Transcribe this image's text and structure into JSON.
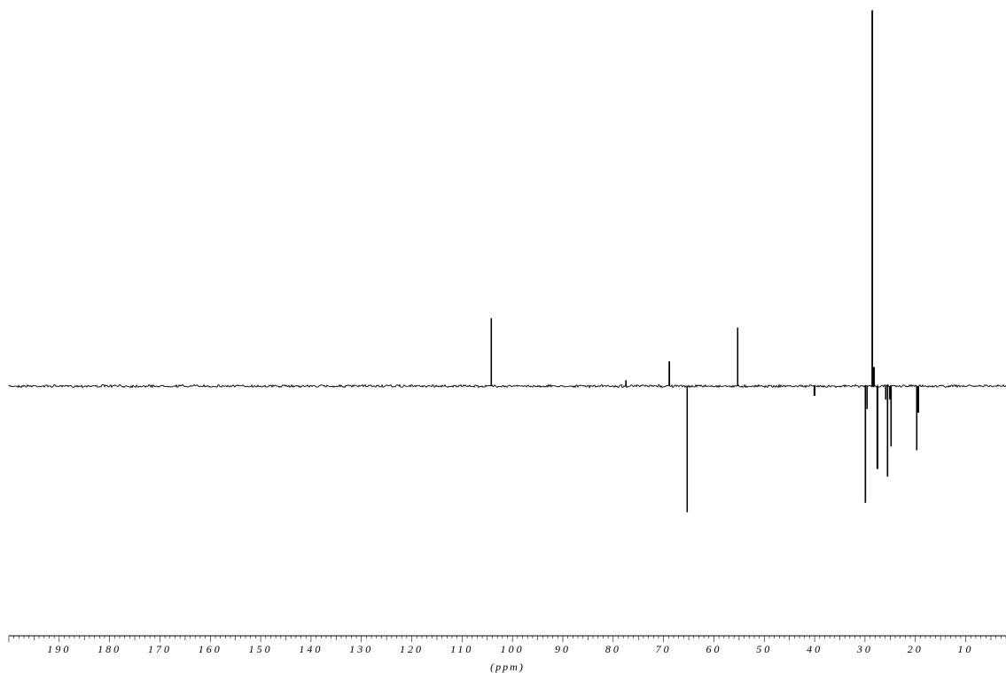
{
  "chart_data": {
    "type": "line",
    "title": "",
    "xlabel": "(ppm)",
    "ylabel": "",
    "x_axis_reversed": true,
    "xlim": [
      200,
      2
    ],
    "ylim": [
      -0.34,
      1.0
    ],
    "grid": false,
    "legend": "none",
    "line_color": "#000000",
    "x_ticks": [
      {
        "value": 190,
        "label": "190"
      },
      {
        "value": 180,
        "label": "180"
      },
      {
        "value": 170,
        "label": "170"
      },
      {
        "value": 160,
        "label": "160"
      },
      {
        "value": 150,
        "label": "150"
      },
      {
        "value": 140,
        "label": "140"
      },
      {
        "value": 130,
        "label": "130"
      },
      {
        "value": 120,
        "label": "120"
      },
      {
        "value": 110,
        "label": "110"
      },
      {
        "value": 100,
        "label": "100"
      },
      {
        "value": 90,
        "label": "90"
      },
      {
        "value": 80,
        "label": "80"
      },
      {
        "value": 70,
        "label": "70"
      },
      {
        "value": 60,
        "label": "60"
      },
      {
        "value": 50,
        "label": "50"
      },
      {
        "value": 40,
        "label": "40"
      },
      {
        "value": 30,
        "label": "30"
      },
      {
        "value": 20,
        "label": "20"
      },
      {
        "value": 10,
        "label": "10"
      }
    ],
    "series": [
      {
        "peaks": [
          {
            "ppm": 104.2,
            "intensity": 0.18
          },
          {
            "ppm": 77.5,
            "intensity": 0.015
          },
          {
            "ppm": 68.9,
            "intensity": 0.065
          },
          {
            "ppm": 65.3,
            "intensity": -0.335
          },
          {
            "ppm": 55.3,
            "intensity": 0.155
          },
          {
            "ppm": 40.1,
            "intensity": -0.025
          },
          {
            "ppm": 29.9,
            "intensity": -0.31
          },
          {
            "ppm": 29.6,
            "intensity": -0.06
          },
          {
            "ppm": 28.6,
            "intensity": 1.0
          },
          {
            "ppm": 28.3,
            "intensity": 0.05
          },
          {
            "ppm": 27.6,
            "intensity": -0.22
          },
          {
            "ppm": 25.9,
            "intensity": -0.035
          },
          {
            "ppm": 25.5,
            "intensity": -0.24
          },
          {
            "ppm": 25.1,
            "intensity": -0.035
          },
          {
            "ppm": 24.8,
            "intensity": -0.16
          },
          {
            "ppm": 19.7,
            "intensity": -0.17
          },
          {
            "ppm": 19.5,
            "intensity": -0.07
          }
        ]
      }
    ]
  }
}
